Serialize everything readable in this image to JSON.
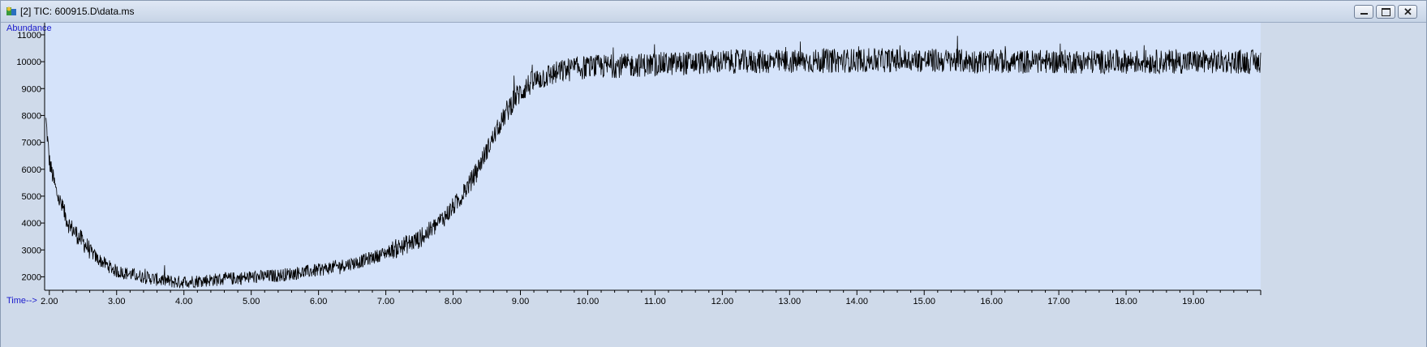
{
  "window": {
    "title": "[2] TIC: 600915.D\\data.ms",
    "buttons": [
      "minimize",
      "maximize",
      "close"
    ]
  },
  "chart_data": {
    "type": "line",
    "ylabel": "Abundance",
    "xlabel": "Time-->",
    "xlim": [
      1.93,
      20.0
    ],
    "ylim": [
      1500,
      11450
    ],
    "x_ticks": [
      "2.00",
      "3.00",
      "4.00",
      "5.00",
      "6.00",
      "7.00",
      "8.00",
      "9.00",
      "10.00",
      "11.00",
      "12.00",
      "13.00",
      "14.00",
      "15.00",
      "16.00",
      "17.00",
      "18.00",
      "19.00"
    ],
    "y_ticks": [
      "2000",
      "3000",
      "4000",
      "5000",
      "6000",
      "7000",
      "8000",
      "9000",
      "10000",
      "11000"
    ],
    "background_color": "#d5e3fa",
    "line_color": "#000000",
    "series": [
      {
        "x": [
          1.95,
          2.0,
          2.1,
          2.2,
          2.3,
          2.5,
          2.7,
          3.0,
          3.3,
          3.6,
          3.9,
          4.2,
          4.5,
          4.8,
          5.1,
          5.4,
          5.7,
          6.0,
          6.3,
          6.6,
          6.9,
          7.2,
          7.5,
          7.7,
          7.9,
          8.1,
          8.3,
          8.5,
          8.7,
          8.9,
          9.1,
          9.3,
          9.5,
          9.7,
          10.0,
          10.5,
          11.0,
          11.5,
          12.0,
          13.0,
          14.0,
          15.0,
          16.0,
          17.0,
          18.0,
          19.0,
          20.0
        ],
        "values": [
          7800,
          6300,
          5200,
          4500,
          3900,
          3300,
          2700,
          2200,
          2050,
          1900,
          1800,
          1850,
          1900,
          1950,
          2000,
          2050,
          2150,
          2250,
          2400,
          2550,
          2800,
          3100,
          3400,
          3800,
          4300,
          4900,
          5700,
          6700,
          7700,
          8600,
          9100,
          9400,
          9550,
          9700,
          9800,
          9850,
          9900,
          9950,
          10000,
          10000,
          10050,
          10050,
          10000,
          10000,
          10000,
          10000,
          10000
        ],
        "noise": 450
      }
    ]
  }
}
